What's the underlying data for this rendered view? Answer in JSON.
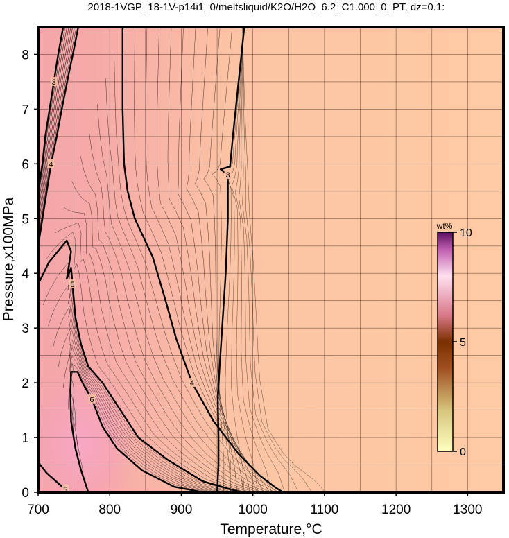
{
  "chart_data": {
    "type": "heatmap",
    "title": "2018-1VGP_18-1V-p14i1_0/meltsliquid/K2O/H2O_6.2_C1.000_0_PT, dz=0.1:",
    "xlabel": "Temperature,°C",
    "ylabel": "Pressure,x100MPa",
    "xlim": [
      700,
      1350
    ],
    "ylim": [
      0,
      8.5
    ],
    "x_ticks": [
      700,
      800,
      900,
      1000,
      1100,
      1200,
      1300
    ],
    "y_ticks": [
      0,
      1,
      2,
      3,
      4,
      5,
      6,
      7,
      8
    ],
    "grid": true,
    "colorbar": {
      "label": "wt%",
      "range": [
        0,
        10
      ],
      "ticks": [
        0,
        5,
        10
      ],
      "colors": [
        "#ffffc0",
        "#7a3000",
        "#ffe0f0",
        "#5a1060"
      ]
    },
    "contour_interval": 0.1,
    "labeled_contours": [
      {
        "level": 3,
        "label": "3",
        "path": [
          [
            950,
            0
          ],
          [
            952,
            0.5
          ],
          [
            952,
            1
          ],
          [
            951,
            1.7
          ],
          [
            953,
            2.2
          ],
          [
            957,
            3
          ],
          [
            962,
            4
          ],
          [
            965,
            5
          ],
          [
            965,
            5.8
          ],
          [
            955,
            5.9
          ],
          [
            968,
            5.95
          ],
          [
            972,
            6.5
          ],
          [
            980,
            7.5
          ],
          [
            988,
            8.5
          ]
        ]
      },
      {
        "level": 4,
        "label": "4",
        "path": [
          [
            1042,
            0
          ],
          [
            1030,
            0.1
          ],
          [
            1010,
            0.3
          ],
          [
            980,
            0.7
          ],
          [
            945,
            1.3
          ],
          [
            915,
            2
          ],
          [
            893,
            2.8
          ],
          [
            878,
            3.5
          ],
          [
            860,
            4.3
          ],
          [
            835,
            5
          ],
          [
            825,
            5.5
          ],
          [
            820,
            6
          ],
          [
            818,
            7
          ],
          [
            818,
            8.5
          ]
        ]
      },
      {
        "level": 5,
        "label": "5",
        "path": [
          [
            985,
            0
          ],
          [
            970,
            0.05
          ],
          [
            930,
            0.2
          ],
          [
            880,
            0.6
          ],
          [
            840,
            1
          ],
          [
            815,
            1.5
          ],
          [
            790,
            2
          ],
          [
            770,
            2.3
          ],
          [
            760,
            2.7
          ],
          [
            752,
            3.2
          ],
          [
            748,
            3.8
          ],
          [
            746,
            4.1
          ],
          [
            740,
            3.9
          ],
          [
            746,
            4.4
          ],
          [
            740,
            4.6
          ],
          [
            715,
            4.2
          ],
          [
            700,
            3.8
          ]
        ]
      },
      {
        "level": 6,
        "label": "6",
        "path": [
          [
            930,
            0
          ],
          [
            890,
            0.1
          ],
          [
            845,
            0.4
          ],
          [
            810,
            0.8
          ],
          [
            790,
            1.2
          ],
          [
            775,
            1.7
          ],
          [
            762,
            2
          ],
          [
            755,
            2.2
          ],
          [
            746,
            2.2
          ],
          [
            745,
            1.8
          ],
          [
            746,
            1.3
          ],
          [
            752,
            0.8
          ],
          [
            760,
            0.4
          ],
          [
            770,
            0
          ]
        ]
      },
      {
        "level": 5,
        "label": "5",
        "path": [
          [
            700,
            0.55
          ],
          [
            712,
            0.35
          ],
          [
            725,
            0.2
          ],
          [
            738,
            0.05
          ],
          [
            742,
            0
          ]
        ]
      },
      {
        "level": 4,
        "label": "4",
        "path": [
          [
            700,
            4.5
          ],
          [
            706,
            5
          ],
          [
            712,
            5.5
          ],
          [
            718,
            6
          ],
          [
            726,
            6.5
          ],
          [
            733,
            7
          ],
          [
            742,
            7.6
          ],
          [
            750,
            8.1
          ],
          [
            756,
            8.5
          ]
        ]
      },
      {
        "level": 3,
        "label": "3",
        "path": [
          [
            700,
            5.5
          ],
          [
            706,
            6
          ],
          [
            710,
            6.5
          ],
          [
            716,
            7
          ],
          [
            722,
            7.5
          ],
          [
            728,
            8
          ],
          [
            735,
            8.5
          ]
        ]
      }
    ]
  }
}
